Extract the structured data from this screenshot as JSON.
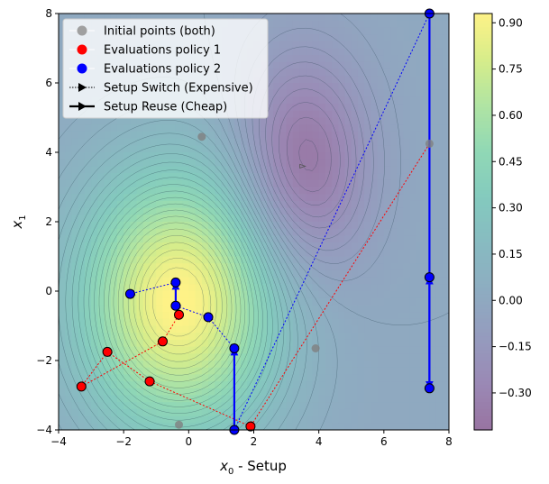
{
  "chart_data": {
    "type": "contour",
    "xlabel": "x_0 - Setup",
    "xlabel_main": "x",
    "xlabel_sub": "0",
    "xlabel_suffix": " - Setup",
    "ylabel_main": "x",
    "ylabel_sub": "1",
    "xlim": [
      -4,
      8
    ],
    "ylim": [
      -4,
      8
    ],
    "xticks": [
      -4,
      -2,
      0,
      2,
      4,
      6,
      8
    ],
    "yticks": [
      -4,
      -2,
      0,
      2,
      4,
      6,
      8
    ],
    "field": {
      "peaks": [
        {
          "x": -0.3,
          "y": -0.3,
          "amp": 0.95,
          "sx": 2.1,
          "sy": 2.6
        },
        {
          "x": 3.5,
          "y": 3.6,
          "amp": -0.42,
          "sx": 1.4,
          "sy": 2.2
        }
      ]
    },
    "colorbar": {
      "ticks": [
        "0.90",
        "0.75",
        "0.60",
        "0.45",
        "0.30",
        "0.15",
        "0.00",
        "−0.15",
        "−0.30"
      ],
      "tick_values": [
        0.9,
        0.75,
        0.6,
        0.45,
        0.3,
        0.15,
        0.0,
        -0.15,
        -0.3
      ],
      "min": -0.42,
      "max": 0.93,
      "colormap": "viridis",
      "alpha": 0.55
    },
    "legend_position": "top-left",
    "legend": [
      {
        "label": "Initial points (both)",
        "kind": "marker",
        "color": "#a0a0a0"
      },
      {
        "label": "Evaluations policy 1",
        "kind": "marker",
        "color": "#ff0000"
      },
      {
        "label": "Evaluations policy 2",
        "kind": "marker",
        "color": "#0000ff"
      },
      {
        "label": "Setup Switch (Expensive)",
        "kind": "dotted-arrow",
        "color": "#000000"
      },
      {
        "label": "Setup Reuse (Cheap)",
        "kind": "solid-arrow",
        "color": "#000000"
      }
    ],
    "initial_points": [
      {
        "x": 0.4,
        "y": 4.45
      },
      {
        "x": 7.4,
        "y": 4.25
      },
      {
        "x": 3.9,
        "y": -1.65
      },
      {
        "x": -0.3,
        "y": -3.85
      }
    ],
    "policy1_points": [
      {
        "x": 1.9,
        "y": -3.9
      },
      {
        "x": -1.2,
        "y": -2.6
      },
      {
        "x": -2.5,
        "y": -1.75
      },
      {
        "x": -3.3,
        "y": -2.75
      },
      {
        "x": -0.8,
        "y": -1.45
      },
      {
        "x": -0.3,
        "y": -0.68
      }
    ],
    "policy2_points": [
      {
        "x": 1.4,
        "y": -4.0
      },
      {
        "x": 1.4,
        "y": -1.65
      },
      {
        "x": 0.6,
        "y": -0.75
      },
      {
        "x": -0.4,
        "y": -0.42
      },
      {
        "x": -0.4,
        "y": 0.25
      },
      {
        "x": -1.8,
        "y": -0.08
      },
      {
        "x": 7.4,
        "y": 8.0
      },
      {
        "x": 7.4,
        "y": -2.8
      },
      {
        "x": 7.4,
        "y": 0.4
      }
    ],
    "policy1_moves": [
      {
        "from": [
          7.4,
          4.25
        ],
        "to": [
          1.9,
          -3.9
        ],
        "style": "switch"
      },
      {
        "from": [
          1.9,
          -3.9
        ],
        "to": [
          -1.2,
          -2.6
        ],
        "style": "switch"
      },
      {
        "from": [
          -1.2,
          -2.6
        ],
        "to": [
          -2.5,
          -1.75
        ],
        "style": "switch"
      },
      {
        "from": [
          -2.5,
          -1.75
        ],
        "to": [
          -3.3,
          -2.75
        ],
        "style": "switch"
      },
      {
        "from": [
          -3.3,
          -2.75
        ],
        "to": [
          -0.8,
          -1.45
        ],
        "style": "switch"
      },
      {
        "from": [
          -0.8,
          -1.45
        ],
        "to": [
          -0.3,
          -0.68
        ],
        "style": "switch"
      }
    ],
    "policy2_moves": [
      {
        "from": [
          7.4,
          8.0
        ],
        "to": [
          1.4,
          -4.0
        ],
        "style": "switch"
      },
      {
        "from": [
          1.4,
          -4.0
        ],
        "to": [
          1.4,
          -1.65
        ],
        "style": "reuse"
      },
      {
        "from": [
          1.4,
          -1.65
        ],
        "to": [
          0.6,
          -0.75
        ],
        "style": "switch"
      },
      {
        "from": [
          0.6,
          -0.75
        ],
        "to": [
          -0.4,
          -0.42
        ],
        "style": "switch"
      },
      {
        "from": [
          -0.4,
          -0.42
        ],
        "to": [
          -0.4,
          0.25
        ],
        "style": "reuse"
      },
      {
        "from": [
          -0.4,
          0.25
        ],
        "to": [
          -1.8,
          -0.08
        ],
        "style": "switch"
      },
      {
        "from": [
          7.4,
          8.0
        ],
        "to": [
          7.4,
          -2.8
        ],
        "style": "reuse"
      },
      {
        "from": [
          7.4,
          -2.8
        ],
        "to": [
          7.4,
          0.4
        ],
        "style": "reuse"
      }
    ],
    "optimum_marker": {
      "x": 3.5,
      "y": 3.6
    }
  }
}
